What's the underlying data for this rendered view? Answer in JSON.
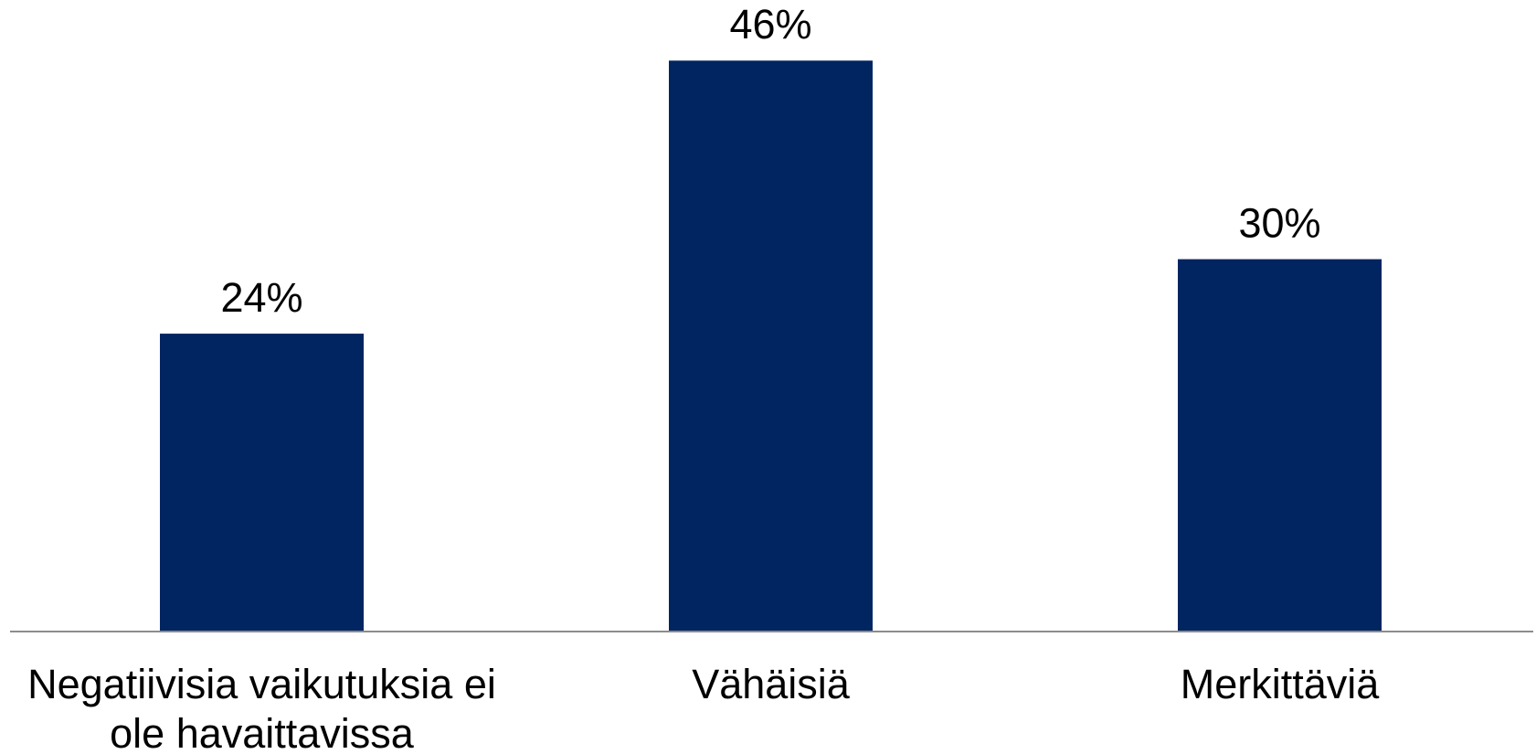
{
  "chart_data": {
    "type": "bar",
    "categories": [
      "Negatiivisia vaikutuksia ei ole havaittavissa",
      "Vähäisiä",
      "Merkittäviä"
    ],
    "values": [
      24,
      46,
      30
    ],
    "value_labels": [
      "24%",
      "46%",
      "30%"
    ],
    "color": "#002561"
  }
}
